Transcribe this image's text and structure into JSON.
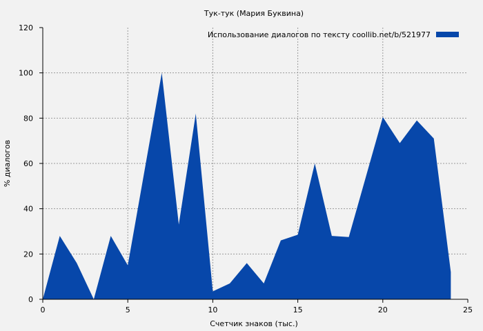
{
  "chart_data": {
    "type": "area",
    "title": "Тук-тук (Мария Буквина)",
    "xlabel": "Счетчик знаков (тыс.)",
    "ylabel": "% диалогов",
    "xlim": [
      0,
      25
    ],
    "ylim": [
      0,
      120
    ],
    "xticks": [
      0,
      5,
      10,
      15,
      20,
      25
    ],
    "yticks": [
      0,
      20,
      40,
      60,
      80,
      100,
      120
    ],
    "grid": true,
    "legend": {
      "position": "top-right",
      "label": "Использование диалогов по тексту  coollib.net/b/521977"
    },
    "series": [
      {
        "name": "Использование диалогов по тексту  coollib.net/b/521977",
        "color": "#0747aa",
        "x": [
          0,
          1,
          2,
          3,
          4,
          5,
          6,
          7,
          8,
          9,
          10,
          11,
          12,
          13,
          14,
          15,
          16,
          17,
          18,
          19,
          20,
          21,
          22,
          23,
          24
        ],
        "y": [
          0,
          28,
          16,
          0,
          28,
          15,
          57.5,
          100,
          33,
          82,
          3.5,
          7,
          16,
          7,
          26,
          28.5,
          60,
          28,
          27.5,
          54,
          80.5,
          69,
          79,
          71,
          12
        ]
      }
    ]
  }
}
